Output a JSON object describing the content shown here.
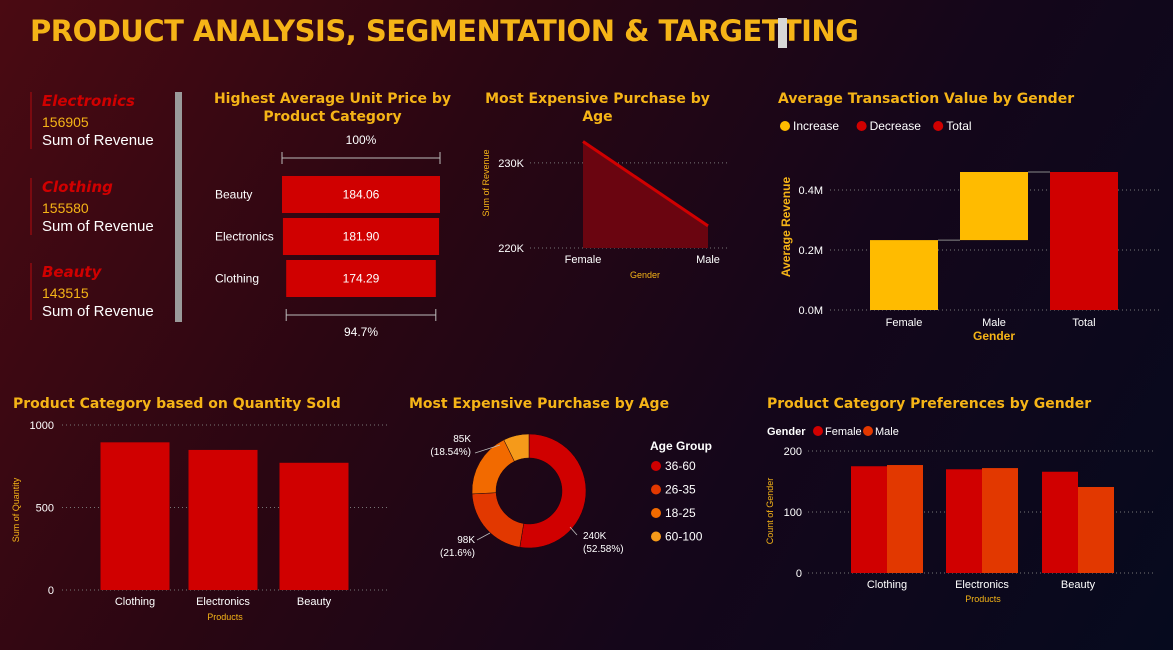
{
  "title": "PRODUCT ANALYSIS, SEGMENTATION & TARGETTING",
  "kpis": [
    {
      "name": "Electronics",
      "value": "156905",
      "label": "Sum of Revenue"
    },
    {
      "name": "Clothing",
      "value": "155580",
      "label": "Sum of Revenue"
    },
    {
      "name": "Beauty",
      "value": "143515",
      "label": "Sum of Revenue"
    }
  ],
  "colors": {
    "red": "#d00000",
    "orange_red": "#e23800",
    "orange": "#f26a00",
    "amber": "#f59a1a",
    "gold": "#ffbb00",
    "title": "#f5b417"
  },
  "chart_data": [
    {
      "id": "funnel",
      "type": "bar",
      "title": "Highest Average Unit Price by Product Category",
      "categories": [
        "Beauty",
        "Electronics",
        "Clothing"
      ],
      "values": [
        184.06,
        181.9,
        174.29
      ],
      "value_labels": [
        "184.06",
        "181.90",
        "174.29"
      ],
      "top_pct": "100%",
      "bottom_pct": "94.7%"
    },
    {
      "id": "area",
      "type": "area",
      "title": "Most Expensive Purchase by Age",
      "x": [
        "Female",
        "Male"
      ],
      "values": [
        232500,
        222600
      ],
      "xlabel": "Gender",
      "ylabel": "Sum of Revenue",
      "yticks": [
        {
          "v": 220000,
          "label": "220K"
        },
        {
          "v": 230000,
          "label": "230K"
        }
      ],
      "ylim": [
        220000,
        233500
      ]
    },
    {
      "id": "waterfall",
      "type": "bar",
      "title": "Average Transaction Value by Gender",
      "legend": [
        "Increase",
        "Decrease",
        "Total"
      ],
      "categories": [
        "Female",
        "Male",
        "Total"
      ],
      "values": [
        0.233,
        0.227,
        0.46
      ],
      "kinds": [
        "increase",
        "increase",
        "total"
      ],
      "xlabel": "Gender",
      "ylabel": "Average Revenue",
      "yticks": [
        {
          "v": 0,
          "label": "0.0M"
        },
        {
          "v": 0.2,
          "label": "0.2M"
        },
        {
          "v": 0.4,
          "label": "0.4M"
        }
      ],
      "ylim": [
        0,
        0.5
      ]
    },
    {
      "id": "qty",
      "type": "bar",
      "title": "Product Category based on Quantity Sold",
      "categories": [
        "Clothing",
        "Electronics",
        "Beauty"
      ],
      "values": [
        895,
        849,
        771
      ],
      "xlabel": "Products",
      "ylabel": "Sum of Quantity",
      "yticks": [
        {
          "v": 0,
          "label": "0"
        },
        {
          "v": 500,
          "label": "500"
        },
        {
          "v": 1000,
          "label": "1000"
        }
      ],
      "ylim": [
        0,
        1000
      ]
    },
    {
      "id": "donut",
      "type": "pie",
      "title": "Most Expensive Purchase by Age",
      "legend_title": "Age Group",
      "slices": [
        {
          "name": "36-60",
          "value": 52.58,
          "label": "240K",
          "pct": "(52.58%)"
        },
        {
          "name": "26-35",
          "value": 21.6,
          "label": "98K",
          "pct": "(21.6%)"
        },
        {
          "name": "18-25",
          "value": 18.54,
          "label": "85K",
          "pct": "(18.54%)"
        },
        {
          "name": "60-100",
          "value": 7.28,
          "label": "",
          "pct": ""
        }
      ]
    },
    {
      "id": "pref",
      "type": "bar",
      "title": "Product Category Preferences by Gender",
      "legend_title": "Gender",
      "categories": [
        "Clothing",
        "Electronics",
        "Beauty"
      ],
      "series": [
        {
          "name": "Female",
          "values": [
            175,
            170,
            166
          ]
        },
        {
          "name": "Male",
          "values": [
            177,
            172,
            141
          ]
        }
      ],
      "xlabel": "Products",
      "ylabel": "Count of Gender",
      "yticks": [
        {
          "v": 0,
          "label": "0"
        },
        {
          "v": 100,
          "label": "100"
        },
        {
          "v": 200,
          "label": "200"
        }
      ],
      "ylim": [
        0,
        200
      ]
    }
  ]
}
